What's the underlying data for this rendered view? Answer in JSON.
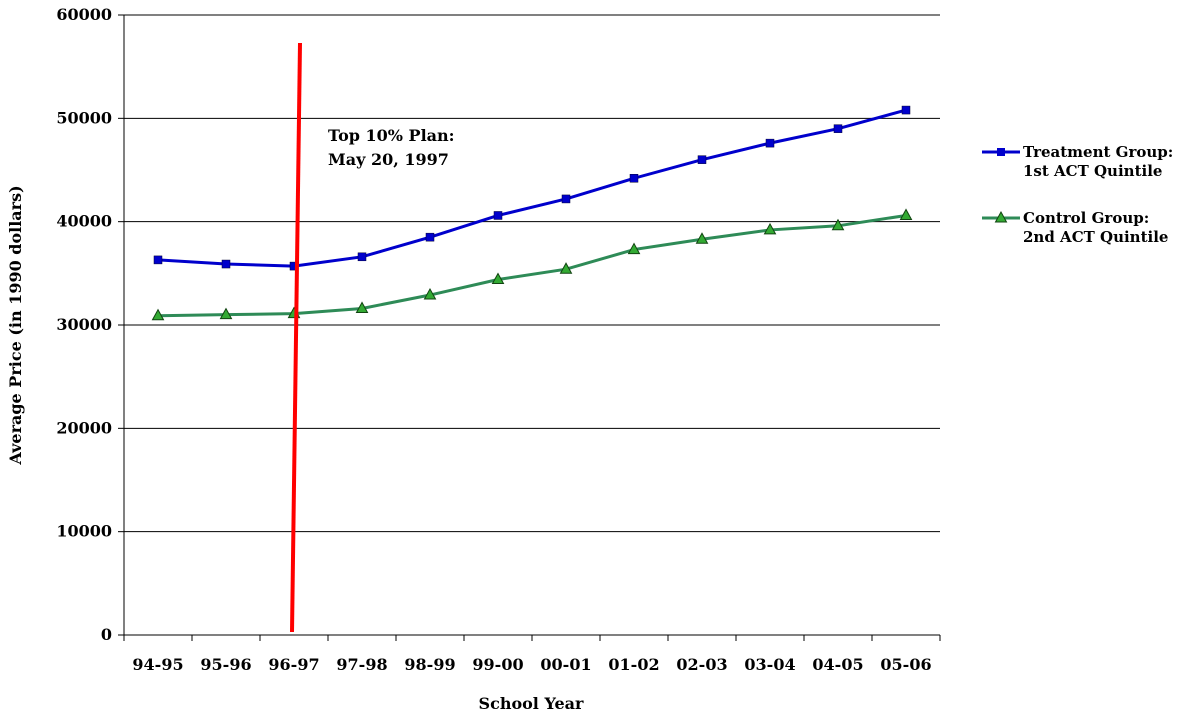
{
  "chart_data": {
    "type": "line",
    "categories": [
      "94-95",
      "95-96",
      "96-97",
      "97-98",
      "98-99",
      "99-00",
      "00-01",
      "01-02",
      "02-03",
      "03-04",
      "04-05",
      "05-06"
    ],
    "series": [
      {
        "name_lines": [
          "Treatment Group:",
          "1st ACT Quintile"
        ],
        "color": "#0000cc",
        "marker": "square",
        "values": [
          36300,
          35900,
          35700,
          36600,
          38500,
          40600,
          42200,
          44200,
          46000,
          47600,
          49000,
          50800
        ]
      },
      {
        "name_lines": [
          "Control Group:",
          "2nd ACT Quintile"
        ],
        "color": "#2e8b57",
        "marker": "triangle",
        "marker_fill": "#33aa33",
        "values": [
          30900,
          31000,
          31100,
          31600,
          32900,
          34400,
          35400,
          37300,
          38300,
          39200,
          39600,
          40600
        ]
      }
    ],
    "xlabel": "School Year",
    "ylabel": "Average Price (in 1990 dollars)",
    "ylim": [
      0,
      60000
    ],
    "yticks": [
      "0",
      "10000",
      "20000",
      "30000",
      "40000",
      "50000",
      "60000"
    ],
    "grid": "horizontal",
    "legend_position": "right",
    "annotation": {
      "lines": [
        "Top 10% Plan:",
        "May 20, 1997"
      ],
      "category": "96-97",
      "line_color": "#ff0000"
    }
  }
}
